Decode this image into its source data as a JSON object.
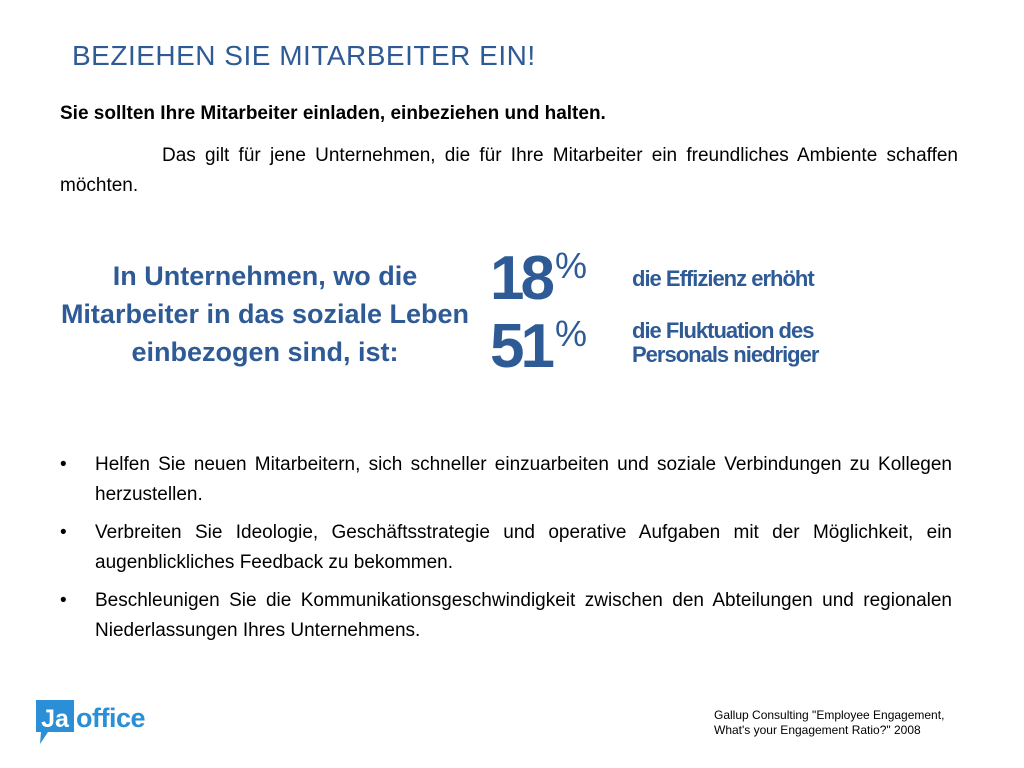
{
  "title": "BEZIEHEN SIE MITARBEITER EIN!",
  "subtitle": "Sie sollten Ihre Mitarbeiter einladen, einbeziehen und halten.",
  "intro": "Das gilt für jene Unternehmen, die für Ihre Mitarbeiter ein freundliches Ambiente schaffen möchten.",
  "stats": {
    "lead": "In Unternehmen, wo die Mitarbeiter in das soziale Leben einbezogen sind, ist:",
    "items": [
      {
        "value": "18",
        "unit": "%",
        "label": "die Effizienz erhöht"
      },
      {
        "value": "51",
        "unit": "%",
        "label_line1": "die Fluktuation des",
        "label_line2": "Personals niedriger"
      }
    ]
  },
  "bullets": [
    "Helfen Sie neuen Mitarbeitern, sich schneller einzuarbeiten und soziale Verbindungen zu Kollegen herzustellen.",
    "Verbreiten Sie Ideologie, Geschäftsstrategie und operative Aufgaben mit der Möglichkeit, ein augenblickliches Feedback zu bekommen.",
    "Beschleunigen Sie die Kommunikationsgeschwindigkeit zwischen den Abteilungen und regionalen Niederlassungen Ihres Unternehmens."
  ],
  "bullet_symbol": "•",
  "logo": {
    "badge": "Ja",
    "word": "office",
    "color": "#2a8fd6"
  },
  "source": {
    "line1": "Gallup Consulting \"Employee Engagement,",
    "line2": "What's your Engagement Ratio?\" 2008"
  },
  "colors": {
    "accent": "#2e5a96",
    "logo": "#2a8fd6"
  }
}
